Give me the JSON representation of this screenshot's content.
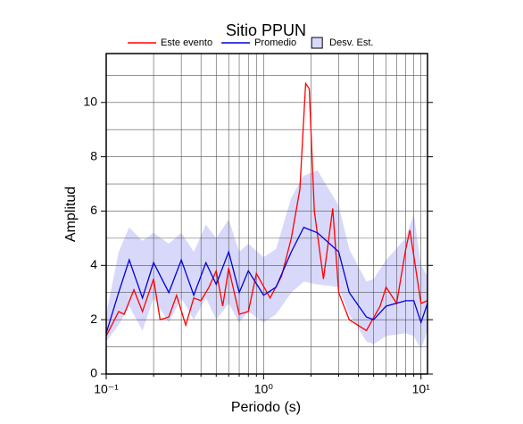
{
  "chart_data": {
    "type": "line",
    "title": "Sitio PPUN",
    "x_label": "Periodo (s)",
    "y_label": "Amplitud",
    "xscale": "log",
    "xlim": [
      0.1,
      11
    ],
    "ylim": [
      0,
      11.8
    ],
    "xticks": [
      {
        "value": 0.1,
        "label": "10⁻¹"
      },
      {
        "value": 1,
        "label": "10⁰"
      },
      {
        "value": 10,
        "label": "10¹"
      }
    ],
    "xgrid": [
      0.2,
      0.3,
      0.4,
      0.5,
      0.6,
      0.7,
      0.8,
      0.9,
      2,
      3,
      4,
      5,
      6,
      7,
      8,
      9
    ],
    "yticks": [
      0,
      2,
      4,
      6,
      8,
      10
    ],
    "ygrid": [
      1,
      2,
      3,
      4,
      5,
      6,
      7,
      8,
      9,
      10,
      11
    ],
    "grid": true,
    "band": {
      "name": "Desv. Est.",
      "color": "#d8d8fa",
      "x": [
        0.1,
        0.12,
        0.14,
        0.17,
        0.2,
        0.25,
        0.3,
        0.36,
        0.43,
        0.5,
        0.6,
        0.7,
        0.8,
        1.0,
        1.2,
        1.5,
        1.8,
        2.2,
        3.0,
        3.5,
        4.5,
        5,
        6,
        8,
        9,
        10,
        11
      ],
      "upper": [
        2.2,
        4.5,
        5.4,
        4.9,
        5.2,
        4.8,
        5.2,
        4.5,
        5.5,
        5.0,
        5.7,
        4.5,
        4.8,
        4.3,
        4.6,
        6.5,
        7.3,
        7.5,
        6.2,
        4.6,
        3.4,
        3.5,
        4.2,
        5.0,
        5.9,
        4.0,
        3.6
      ],
      "lower": [
        1.2,
        1.8,
        2.5,
        1.6,
        2.8,
        1.9,
        2.8,
        2.0,
        2.8,
        2.0,
        2.6,
        1.9,
        2.3,
        1.9,
        2.2,
        3.0,
        3.4,
        3.3,
        3.2,
        2.2,
        1.2,
        1.1,
        1.4,
        1.5,
        1.4,
        0.9,
        1.6
      ]
    },
    "series": [
      {
        "name": "Este evento",
        "color": "#ff0000",
        "x": [
          0.1,
          0.12,
          0.13,
          0.15,
          0.17,
          0.2,
          0.22,
          0.25,
          0.28,
          0.32,
          0.36,
          0.4,
          0.45,
          0.5,
          0.55,
          0.6,
          0.7,
          0.8,
          0.9,
          1.1,
          1.3,
          1.5,
          1.7,
          1.85,
          1.95,
          2.1,
          2.4,
          2.75,
          3.0,
          3.5,
          4.5,
          5.5,
          6,
          7,
          8,
          8.5,
          10,
          11
        ],
        "values": [
          1.4,
          2.3,
          2.2,
          3.1,
          2.3,
          3.5,
          2.0,
          2.1,
          2.9,
          1.8,
          2.8,
          2.7,
          3.2,
          3.8,
          2.5,
          3.9,
          2.2,
          2.3,
          3.7,
          2.8,
          3.6,
          5.0,
          6.8,
          10.7,
          10.5,
          6.0,
          3.5,
          6.1,
          3.0,
          2.0,
          1.6,
          2.5,
          3.2,
          2.6,
          4.6,
          5.3,
          2.6,
          2.7
        ]
      },
      {
        "name": "Promedio",
        "color": "#0000dd",
        "x": [
          0.1,
          0.12,
          0.14,
          0.17,
          0.2,
          0.25,
          0.3,
          0.36,
          0.43,
          0.5,
          0.6,
          0.7,
          0.8,
          1.0,
          1.2,
          1.5,
          1.8,
          2.2,
          3.0,
          3.5,
          4.5,
          5,
          6,
          8,
          9,
          10,
          11
        ],
        "values": [
          1.5,
          3.0,
          4.2,
          2.8,
          4.1,
          3.0,
          4.2,
          2.9,
          4.1,
          3.3,
          4.5,
          3.0,
          3.8,
          2.9,
          3.2,
          4.5,
          5.4,
          5.2,
          4.5,
          3.0,
          2.1,
          2.0,
          2.5,
          2.7,
          2.7,
          1.9,
          2.6
        ]
      }
    ]
  }
}
